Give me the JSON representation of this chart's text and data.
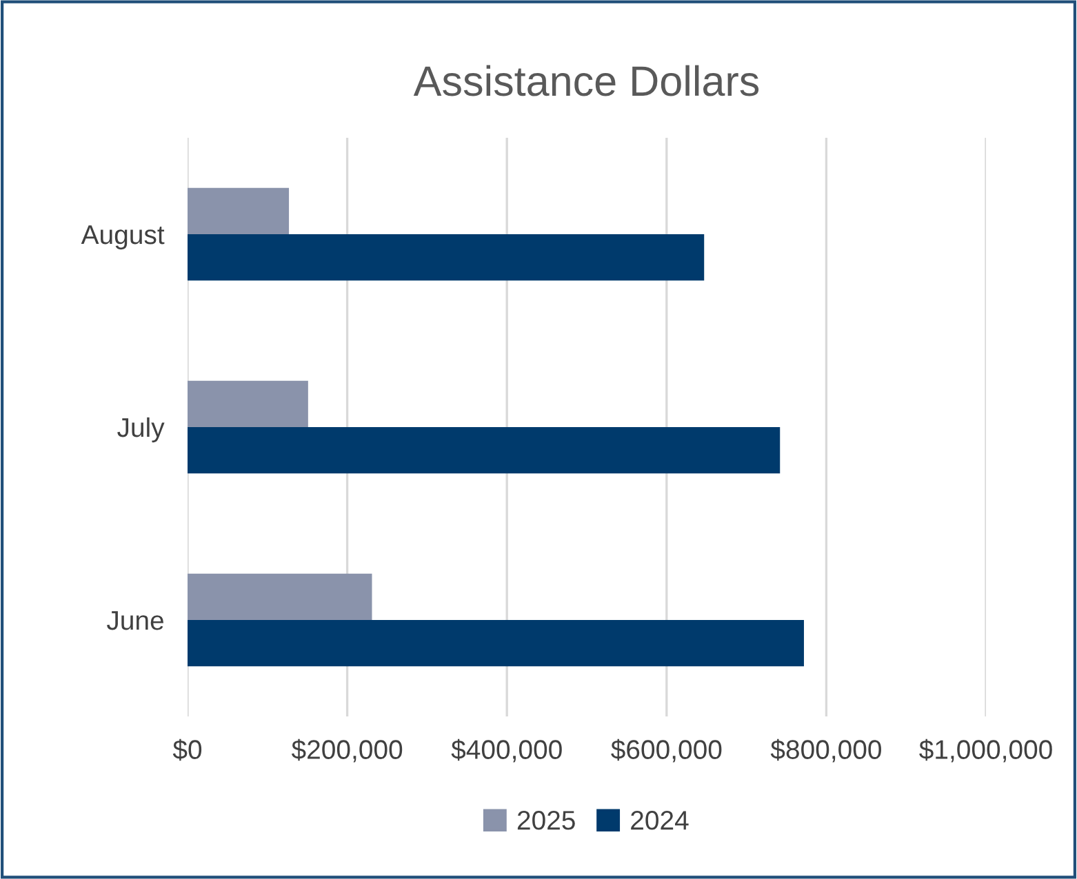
{
  "chart_data": {
    "type": "bar",
    "orientation": "horizontal",
    "title": "Assistance Dollars",
    "categories": [
      "August",
      "July",
      "June"
    ],
    "series": [
      {
        "name": "2025",
        "color": "#8a93ab",
        "values": [
          127000,
          151000,
          231000
        ]
      },
      {
        "name": "2024",
        "color": "#003a6c",
        "values": [
          647000,
          742000,
          772000
        ]
      }
    ],
    "xlim": [
      0,
      1000000
    ],
    "xticks": [
      {
        "value": 0,
        "label": "$0"
      },
      {
        "value": 200000,
        "label": "$200,000"
      },
      {
        "value": 400000,
        "label": "$400,000"
      },
      {
        "value": 600000,
        "label": "$600,000"
      },
      {
        "value": 800000,
        "label": "$800,000"
      },
      {
        "value": 1000000,
        "label": "$1,000,000"
      }
    ],
    "grid": "x",
    "legend": "bottom"
  }
}
